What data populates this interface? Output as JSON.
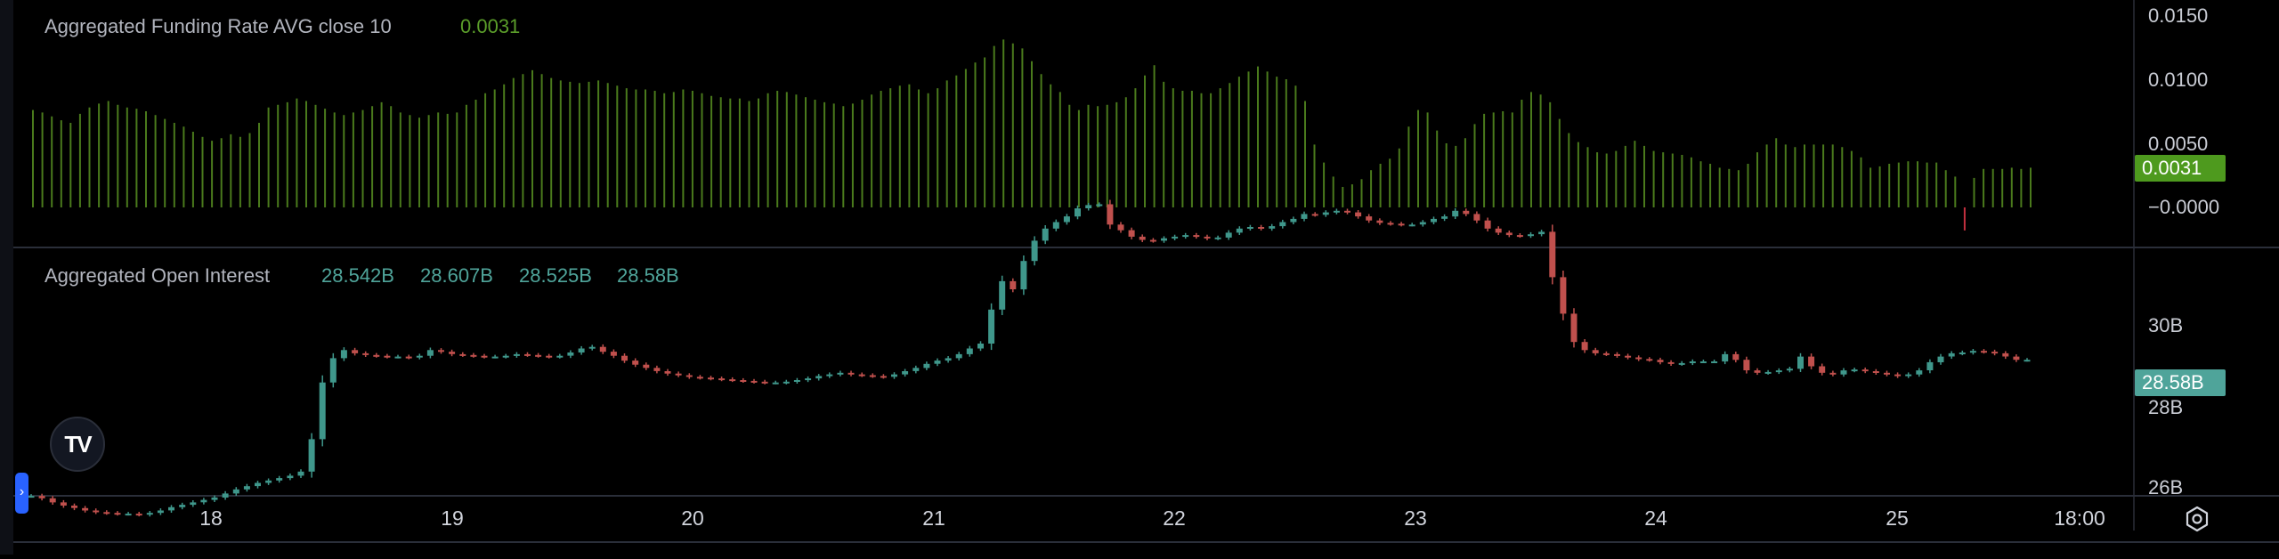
{
  "panes": {
    "funding": {
      "title": "Aggregated Funding Rate AVG close 10",
      "value": "0.0031",
      "badge": "0.0031",
      "ticks": [
        "0.0150",
        "0.0100",
        "0.0050",
        "−0.0000"
      ]
    },
    "oi": {
      "title": "Aggregated Open Interest",
      "o": "28.542B",
      "h": "28.607B",
      "l": "28.525B",
      "c": "28.58B",
      "badge": "28.58B",
      "ticks": [
        "30B",
        "28B",
        "26B"
      ]
    }
  },
  "time_axis": [
    "18",
    "19",
    "20",
    "21",
    "22",
    "23",
    "24",
    "25",
    "18:00"
  ],
  "colors": {
    "background": "#000000",
    "funding_bar": "#4a7a1c",
    "funding_negative": "#c2303e",
    "badge_green": "#4e9a1e",
    "candle_up": "#3f978b",
    "candle_down": "#c0504d",
    "badge_teal": "#4fa49a",
    "separator": "#2a2e39"
  },
  "icons": {
    "logo": "tradingview-logo-icon",
    "collapse": "chevron-right-icon",
    "settings": "gear-icon"
  },
  "chart_data": [
    {
      "type": "bar",
      "title": "Aggregated Funding Rate AVG close 10",
      "ylim": [
        -0.0025,
        0.0165
      ],
      "grid": false,
      "values": [
        0.0076,
        0.0074,
        0.0071,
        0.0068,
        0.0066,
        0.0073,
        0.0078,
        0.0081,
        0.0083,
        0.008,
        0.0078,
        0.0077,
        0.0075,
        0.0072,
        0.0069,
        0.0066,
        0.0063,
        0.0059,
        0.0055,
        0.0052,
        0.0054,
        0.0057,
        0.0055,
        0.0058,
        0.0066,
        0.0078,
        0.008,
        0.0082,
        0.0085,
        0.0083,
        0.008,
        0.0077,
        0.0074,
        0.0072,
        0.0074,
        0.0076,
        0.0079,
        0.0082,
        0.0079,
        0.0074,
        0.0072,
        0.007,
        0.0072,
        0.0074,
        0.0073,
        0.0074,
        0.008,
        0.0084,
        0.0089,
        0.0092,
        0.0096,
        0.0101,
        0.0104,
        0.0107,
        0.0104,
        0.0101,
        0.0099,
        0.0098,
        0.0097,
        0.0098,
        0.0099,
        0.0097,
        0.0095,
        0.0093,
        0.0092,
        0.0092,
        0.0091,
        0.0089,
        0.009,
        0.0092,
        0.0091,
        0.0089,
        0.0087,
        0.0086,
        0.0085,
        0.0085,
        0.0083,
        0.0085,
        0.0089,
        0.0091,
        0.009,
        0.0088,
        0.0086,
        0.0084,
        0.0082,
        0.0081,
        0.0079,
        0.0081,
        0.0084,
        0.0088,
        0.0091,
        0.0093,
        0.0095,
        0.0096,
        0.0092,
        0.0089,
        0.0093,
        0.0099,
        0.0103,
        0.0108,
        0.0113,
        0.0117,
        0.0126,
        0.0131,
        0.0128,
        0.0124,
        0.0114,
        0.0104,
        0.0096,
        0.009,
        0.008,
        0.0076,
        0.008,
        0.0079,
        0.008,
        0.0082,
        0.0086,
        0.0093,
        0.0103,
        0.0111,
        0.0098,
        0.0093,
        0.0091,
        0.0091,
        0.0089,
        0.0089,
        0.0093,
        0.0097,
        0.0102,
        0.0106,
        0.011,
        0.0106,
        0.0102,
        0.01,
        0.0095,
        0.0083,
        0.0049,
        0.0035,
        0.0024,
        0.0016,
        0.0018,
        0.0022,
        0.0029,
        0.0034,
        0.0038,
        0.0046,
        0.0063,
        0.0076,
        0.0074,
        0.006,
        0.005,
        0.0048,
        0.0054,
        0.0065,
        0.0073,
        0.0074,
        0.0075,
        0.0074,
        0.0084,
        0.009,
        0.0088,
        0.0082,
        0.0069,
        0.0058,
        0.0051,
        0.0047,
        0.0043,
        0.0042,
        0.0044,
        0.0048,
        0.0052,
        0.0048,
        0.0044,
        0.0043,
        0.0042,
        0.0041,
        0.0039,
        0.0036,
        0.0034,
        0.0031,
        0.003,
        0.0029,
        0.0034,
        0.0043,
        0.0049,
        0.0054,
        0.0049,
        0.0047,
        0.0049,
        0.0049,
        0.0049,
        0.0049,
        0.0047,
        0.0044,
        0.0039,
        0.0031,
        0.0032,
        0.0034,
        0.0035,
        0.0036,
        0.0036,
        0.0035,
        0.0035,
        0.0029,
        0.0024,
        -0.0018,
        0.0023,
        0.003,
        0.003,
        0.003,
        0.0031,
        0.003,
        0.0031
      ]
    },
    {
      "type": "candlestick",
      "title": "Aggregated Open Interest",
      "ohlc_last": {
        "open": 28.542,
        "high": 28.607,
        "low": 28.525,
        "close": 28.58
      },
      "units": "billions",
      "ylim": [
        25.8,
        31.5
      ],
      "x_ticks": [
        "18",
        "19",
        "20",
        "21",
        "22",
        "23",
        "24",
        "25",
        "18:00"
      ],
      "grid": false,
      "close": [
        26.9,
        26.87,
        26.82,
        26.78,
        26.75,
        26.72,
        26.7,
        26.69,
        26.68,
        26.68,
        26.67,
        26.69,
        26.72,
        26.76,
        26.79,
        26.82,
        26.85,
        26.88,
        26.93,
        26.98,
        27.02,
        27.06,
        27.09,
        27.12,
        27.15,
        27.2,
        27.6,
        28.3,
        28.6,
        28.7,
        28.66,
        28.64,
        28.63,
        28.62,
        28.62,
        28.61,
        28.63,
        28.7,
        28.68,
        28.65,
        28.64,
        28.63,
        28.62,
        28.62,
        28.63,
        28.65,
        28.64,
        28.63,
        28.62,
        28.63,
        28.67,
        28.72,
        28.74,
        28.68,
        28.63,
        28.57,
        28.52,
        28.48,
        28.44,
        28.41,
        28.39,
        28.37,
        28.36,
        28.35,
        28.34,
        28.33,
        28.32,
        28.31,
        28.3,
        28.3,
        28.31,
        28.33,
        28.35,
        28.38,
        28.4,
        28.42,
        28.4,
        28.39,
        28.38,
        28.37,
        28.4,
        28.44,
        28.48,
        28.53,
        28.57,
        28.6,
        28.65,
        28.72,
        28.78,
        29.2,
        29.55,
        29.45,
        29.8,
        30.05,
        30.2,
        30.28,
        30.35,
        30.45,
        30.49,
        30.5,
        30.25,
        30.18,
        30.1,
        30.06,
        30.05,
        30.08,
        30.1,
        30.12,
        30.1,
        30.08,
        30.09,
        30.15,
        30.2,
        30.22,
        30.2,
        30.23,
        30.28,
        30.32,
        30.38,
        30.37,
        30.4,
        30.42,
        30.4,
        30.35,
        30.3,
        30.27,
        30.26,
        30.25,
        30.25,
        30.28,
        30.32,
        30.35,
        30.42,
        30.38,
        30.3,
        30.2,
        30.15,
        30.12,
        30.11,
        30.13,
        30.16,
        29.6,
        29.15,
        28.8,
        28.7,
        28.66,
        28.65,
        28.63,
        28.61,
        28.59,
        28.58,
        28.55,
        28.53,
        28.54,
        28.56,
        28.56,
        28.56,
        28.65,
        28.58,
        28.45,
        28.42,
        28.43,
        28.45,
        28.47,
        28.62,
        28.5,
        28.42,
        28.4,
        28.45,
        28.46,
        28.44,
        28.42,
        28.4,
        28.38,
        28.4,
        28.45,
        28.55,
        28.62,
        28.66,
        28.67,
        28.69,
        28.68,
        28.66,
        28.62,
        28.58,
        28.58
      ]
    }
  ]
}
